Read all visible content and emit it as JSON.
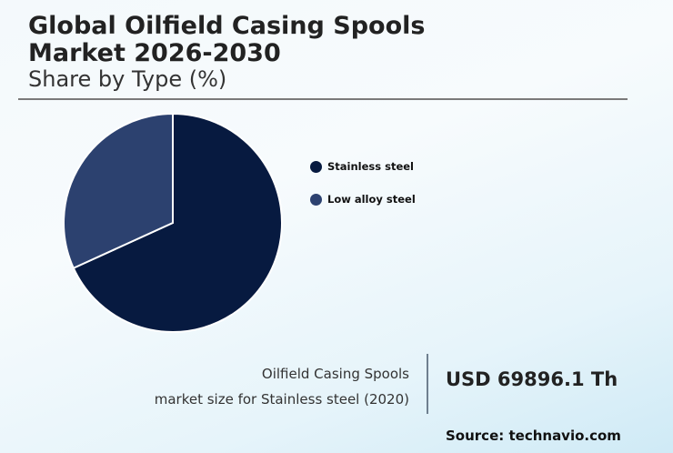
{
  "header": {
    "title_line1": "Global Oilfield Casing Spools",
    "title_line2": "Market 2026-2030",
    "subtitle": "Share by Type (%)"
  },
  "legend": [
    {
      "label": "Stainless steel",
      "color": "#071a40"
    },
    {
      "label": "Low alloy steel",
      "color": "#2c416f"
    }
  ],
  "footer": {
    "desc_line1": "Oilfield Casing Spools",
    "desc_line2": "market size for Stainless steel (2020)",
    "value": "USD 69896.1 Th",
    "source": "Source: technavio.com"
  },
  "chart_data": {
    "type": "pie",
    "title": "Global Oilfield Casing Spools Market 2026-2030",
    "subtitle": "Share by Type (%)",
    "categories": [
      "Stainless steel",
      "Low alloy steel"
    ],
    "values": [
      68.2,
      31.8
    ],
    "colors": [
      "#071a40",
      "#2c416f"
    ],
    "legend_position": "right",
    "annotation": "Oilfield Casing Spools market size for Stainless steel (2020): USD 69896.1 Th"
  }
}
